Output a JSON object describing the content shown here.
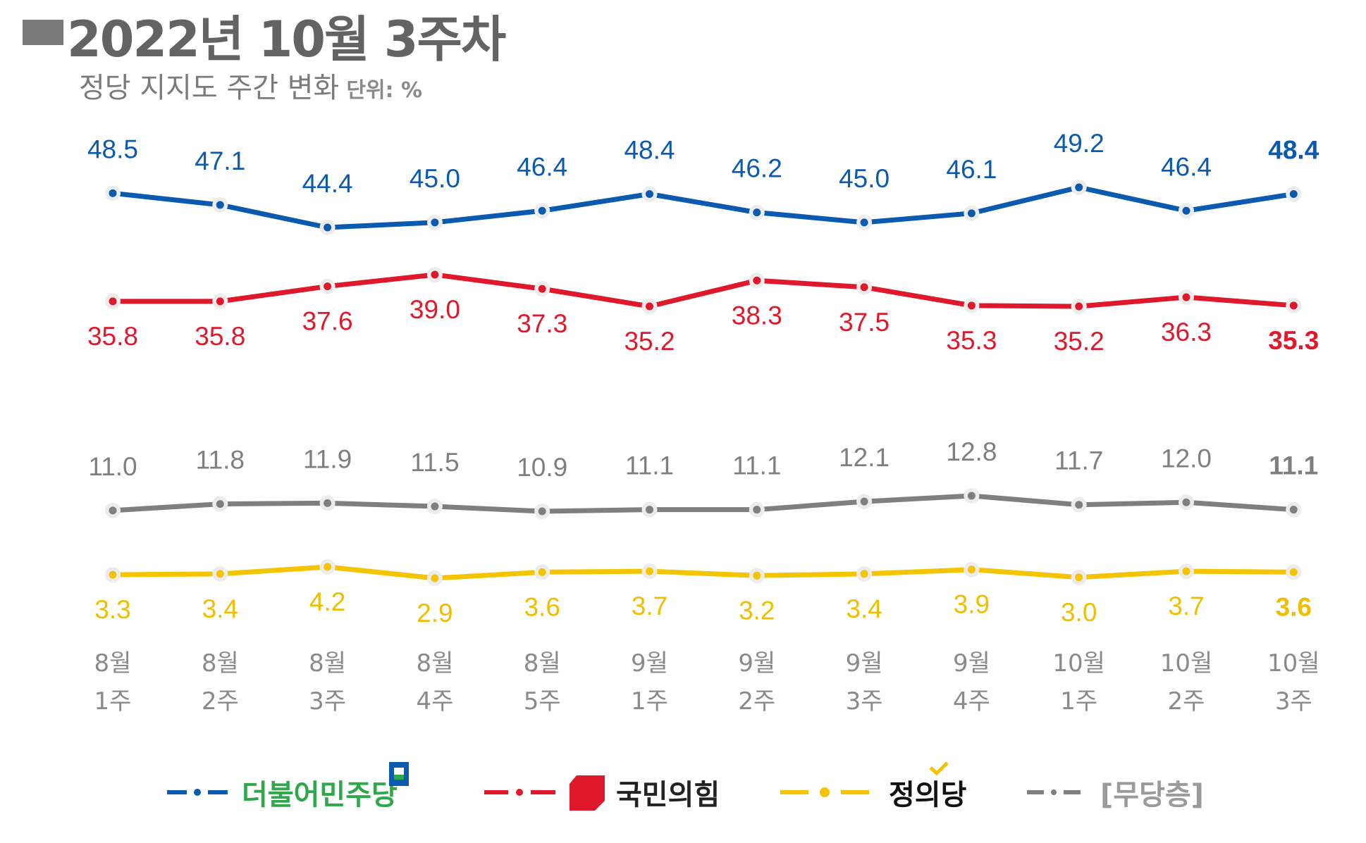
{
  "header": {
    "title": "2022년 10월 3주차",
    "subtitle": "정당 지지도 주간 변화",
    "unit": "단위: %"
  },
  "chart_data": {
    "type": "line",
    "title": "정당 지지도 주간 변화",
    "unit": "%",
    "categories": [
      [
        "8월",
        "1주"
      ],
      [
        "8월",
        "2주"
      ],
      [
        "8월",
        "3주"
      ],
      [
        "8월",
        "4주"
      ],
      [
        "8월",
        "5주"
      ],
      [
        "9월",
        "1주"
      ],
      [
        "9월",
        "2주"
      ],
      [
        "9월",
        "3주"
      ],
      [
        "9월",
        "4주"
      ],
      [
        "10월",
        "1주"
      ],
      [
        "10월",
        "2주"
      ],
      [
        "10월",
        "3주"
      ]
    ],
    "series": [
      {
        "name": "더불어민주당",
        "color": "#0a5aaf",
        "label_position": "above",
        "values": [
          48.5,
          47.1,
          44.4,
          45.0,
          46.4,
          48.4,
          46.2,
          45.0,
          46.1,
          49.2,
          46.4,
          48.4
        ]
      },
      {
        "name": "국민의힘",
        "color": "#e0182b",
        "label_position": "below",
        "values": [
          35.8,
          35.8,
          37.6,
          39.0,
          37.3,
          35.2,
          38.3,
          37.5,
          35.3,
          35.2,
          36.3,
          35.3
        ]
      },
      {
        "name": "[무당층]",
        "color": "#7f7f7f",
        "label_position": "above",
        "values": [
          11.0,
          11.8,
          11.9,
          11.5,
          10.9,
          11.1,
          11.1,
          12.1,
          12.8,
          11.7,
          12.0,
          11.1
        ]
      },
      {
        "name": "정의당",
        "color": "#f5c400",
        "label_position": "below",
        "values": [
          3.3,
          3.4,
          4.2,
          2.9,
          3.6,
          3.7,
          3.2,
          3.4,
          3.9,
          3.0,
          3.7,
          3.6
        ]
      }
    ]
  },
  "legend": {
    "items": [
      {
        "name": "더불어민주당",
        "color": "#0a5aaf",
        "text_color": "#2ea84a",
        "icon": "democratic-party-logo-icon"
      },
      {
        "name": "국민의힘",
        "color": "#e0182b",
        "text_color": "#222222",
        "icon": "people-power-party-logo-icon"
      },
      {
        "name": "정의당",
        "color": "#f5c400",
        "text_color": "#111111",
        "icon": "justice-party-check-icon"
      },
      {
        "name": "[무당층]",
        "color": "#7f7f7f",
        "text_color": "#9a9a9a",
        "icon": ""
      }
    ]
  }
}
